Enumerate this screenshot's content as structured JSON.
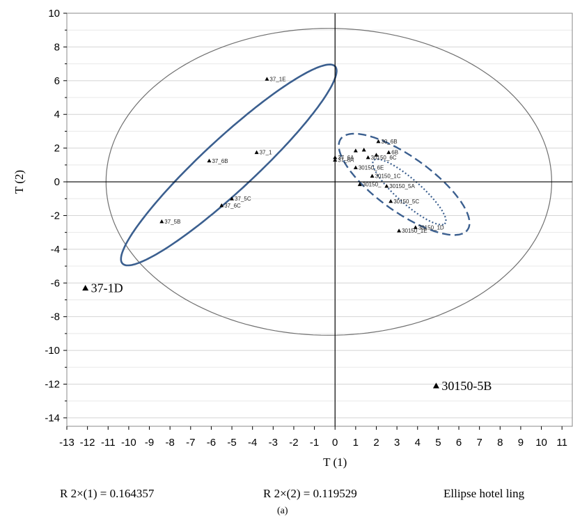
{
  "chart_data": {
    "type": "scatter",
    "xlabel": "T (1)",
    "ylabel": "T (2)",
    "xlim": [
      -13,
      11.5
    ],
    "ylim": [
      -14.5,
      10
    ],
    "x_ticks": [
      -13,
      -12,
      -11,
      -10,
      -9,
      -8,
      -7,
      -6,
      -5,
      -4,
      -3,
      -2,
      -1,
      0,
      1,
      2,
      3,
      4,
      5,
      6,
      7,
      8,
      9,
      10,
      11
    ],
    "y_ticks": [
      10,
      8,
      6,
      4,
      2,
      0,
      -2,
      -4,
      -6,
      -8,
      -10,
      -12,
      -14
    ],
    "grid": "horizontal",
    "points": [
      {
        "label": "37_1E",
        "x": -3.3,
        "y": 6.1
      },
      {
        "label": "37_1",
        "x": -3.8,
        "y": 1.75
      },
      {
        "label": "37_6B",
        "x": -6.1,
        "y": 1.25
      },
      {
        "label": "37_5C",
        "x": -5.0,
        "y": -1.0
      },
      {
        "label": "37_6C",
        "x": -5.5,
        "y": -1.4
      },
      {
        "label": "37_5B",
        "x": -8.4,
        "y": -2.35
      },
      {
        "label": "37-1D",
        "x": -12.1,
        "y": -6.3,
        "big": true
      },
      {
        "label": "30_6B",
        "x": 2.1,
        "y": 2.4
      },
      {
        "label": "",
        "x": 1.0,
        "y": 1.85
      },
      {
        "label": "",
        "x": 1.4,
        "y": 1.9
      },
      {
        "label": "6B",
        "x": 2.6,
        "y": 1.75
      },
      {
        "label": "37_6A",
        "x": 0.0,
        "y": 1.45
      },
      {
        "label": "37_6A",
        "x": 0.0,
        "y": 1.3
      },
      {
        "label": "30150_6C",
        "x": 1.6,
        "y": 1.45
      },
      {
        "label": "",
        "x": 2.0,
        "y": 1.6
      },
      {
        "label": "30150_6E",
        "x": 1.0,
        "y": 0.85
      },
      {
        "label": "30150_1C",
        "x": 1.8,
        "y": 0.35
      },
      {
        "label": "30150_5A",
        "x": 2.5,
        "y": -0.25
      },
      {
        "label": "30150_",
        "x": 1.2,
        "y": -0.15
      },
      {
        "label": "30150_5C",
        "x": 2.7,
        "y": -1.15
      },
      {
        "label": "30150_1D",
        "x": 3.9,
        "y": -2.7
      },
      {
        "label": "30150_1E",
        "x": 3.1,
        "y": -2.9
      },
      {
        "label": "30150-5B",
        "x": 4.9,
        "y": -12.1,
        "big": true
      }
    ],
    "ellipses": [
      {
        "style": "thin",
        "cx": -0.3,
        "cy": 0,
        "rx": 10.8,
        "ry": 9.1,
        "angle": 0
      },
      {
        "style": "solid",
        "cx": -5.15,
        "cy": 1.0,
        "rx": 7.8,
        "ry": 1.4,
        "angle": 49
      },
      {
        "style": "dashed",
        "cx": 3.35,
        "cy": -0.15,
        "rx": 4.1,
        "ry": 1.5,
        "angle": -43
      },
      {
        "style": "dotted",
        "cx": 3.6,
        "cy": -0.6,
        "rx": 2.55,
        "ry": 0.65,
        "angle": -48
      }
    ]
  },
  "footer": {
    "r2x1": "R 2×(1) = 0.164357",
    "r2x2": "R 2×(2) = 0.119529",
    "ellipse": "Ellipse hotel ling"
  },
  "caption": "(a)"
}
